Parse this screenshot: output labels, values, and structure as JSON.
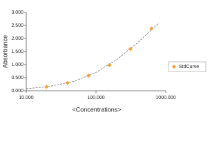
{
  "chart_data": {
    "type": "scatter",
    "xlabel": "<Concentrations>",
    "ylabel": "Absorbance",
    "xscale": "log",
    "xlim": [
      10,
      1000
    ],
    "xticks": [
      {
        "value": 10,
        "label": "10.000"
      },
      {
        "value": 100,
        "label": "100.000"
      },
      {
        "value": 1000,
        "label": "1000.000"
      }
    ],
    "ylim": [
      0,
      3
    ],
    "yticks": [
      {
        "value": 0,
        "label": "0.000"
      },
      {
        "value": 0.5,
        "label": "0.500"
      },
      {
        "value": 1,
        "label": "1.000"
      },
      {
        "value": 1.5,
        "label": "1.500"
      },
      {
        "value": 2,
        "label": "2.000"
      },
      {
        "value": 2.5,
        "label": "2.500"
      },
      {
        "value": 3,
        "label": "3.000"
      }
    ],
    "series": [
      {
        "name": "StdCurve",
        "color": "#f0a030",
        "x": [
          19.5,
          39,
          78,
          156,
          312,
          625
        ],
        "values": [
          0.15,
          0.3,
          0.58,
          0.98,
          1.6,
          2.38
        ]
      }
    ],
    "fit": {
      "color": "#777777",
      "x": [
        10,
        20,
        50,
        100,
        200,
        400,
        800
      ],
      "values": [
        0.08,
        0.15,
        0.37,
        0.7,
        1.2,
        1.85,
        2.6
      ]
    },
    "legend": "right"
  }
}
